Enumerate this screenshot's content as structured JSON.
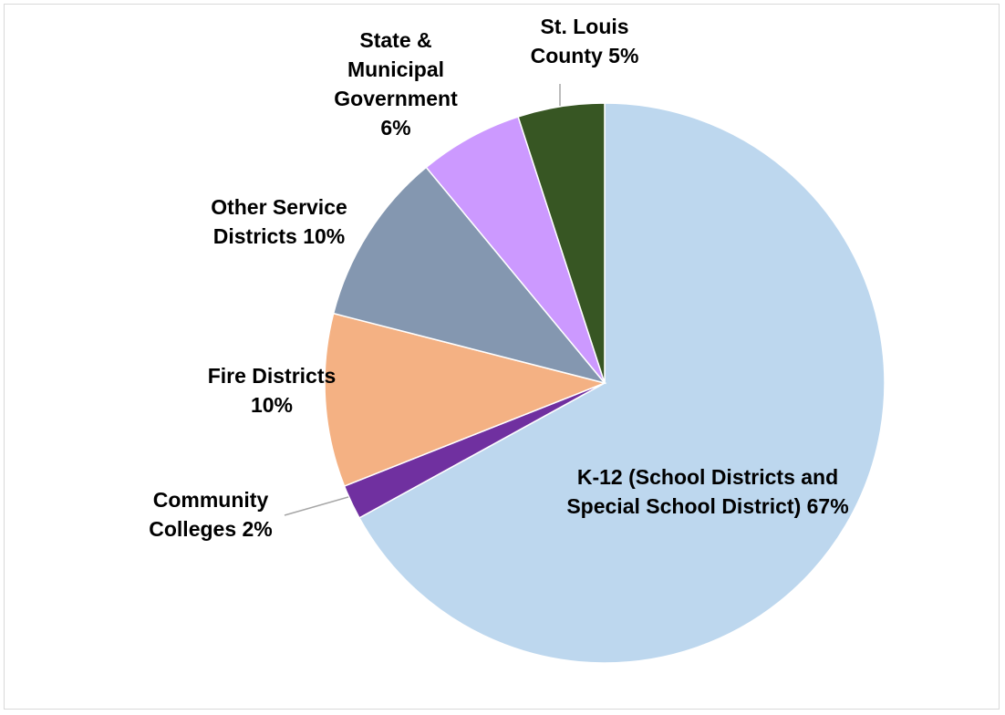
{
  "chart_data": {
    "type": "pie",
    "start_angle_deg": 0,
    "direction": "clockwise",
    "slices": [
      {
        "label_lines": [
          "K-12 (School Districts and",
          "Special School District) 67%"
        ],
        "value": 67,
        "color": "#BDD7EE"
      },
      {
        "label_lines": [
          "Community",
          "Colleges 2%"
        ],
        "value": 2,
        "color": "#7030A0"
      },
      {
        "label_lines": [
          "Fire Districts",
          "10%"
        ],
        "value": 10,
        "color": "#F4B183"
      },
      {
        "label_lines": [
          "Other Service",
          "Districts 10%"
        ],
        "value": 10,
        "color": "#8497B0"
      },
      {
        "label_lines": [
          "State &",
          "Municipal",
          "Government",
          "6%"
        ],
        "value": 6,
        "color": "#CC99FF"
      },
      {
        "label_lines": [
          "St. Louis",
          "County 5%"
        ],
        "value": 5,
        "color": "#375623"
      }
    ],
    "legend": "none",
    "data_labels": "outside with leader lines"
  }
}
